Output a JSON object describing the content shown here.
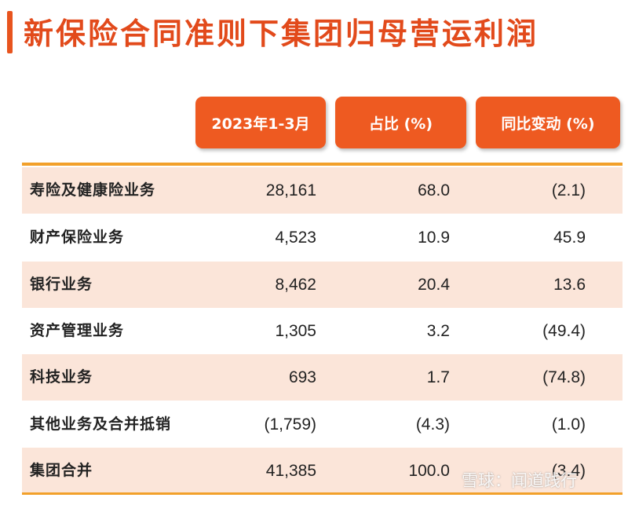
{
  "title": "新保险合同准则下集团归母营运利润",
  "headers": [
    "2023年1-3月",
    "占比 (%)",
    "同比变动 (%)"
  ],
  "rows": [
    {
      "label": "寿险及健康险业务",
      "value": "28,161",
      "share": "68.0",
      "change": "(2.1)"
    },
    {
      "label": "财产保险业务",
      "value": "4,523",
      "share": "10.9",
      "change": "45.9"
    },
    {
      "label": "银行业务",
      "value": "8,462",
      "share": "20.4",
      "change": "13.6"
    },
    {
      "label": "资产管理业务",
      "value": "1,305",
      "share": "3.2",
      "change": "(49.4)"
    },
    {
      "label": "科技业务",
      "value": "693",
      "share": "1.7",
      "change": "(74.8)"
    },
    {
      "label": "其他业务及合并抵销",
      "value": "(1,759)",
      "share": "(4.3)",
      "change": "(1.0)"
    },
    {
      "label": "集团合并",
      "value": "41,385",
      "share": "100.0",
      "change": "(3.4)"
    }
  ],
  "watermark": "雪球：闻道践行",
  "colors": {
    "accent": "#ee5a21",
    "title": "#e24a1b",
    "row_shade": "#fbe5d9",
    "rule": "#f2a02a"
  }
}
